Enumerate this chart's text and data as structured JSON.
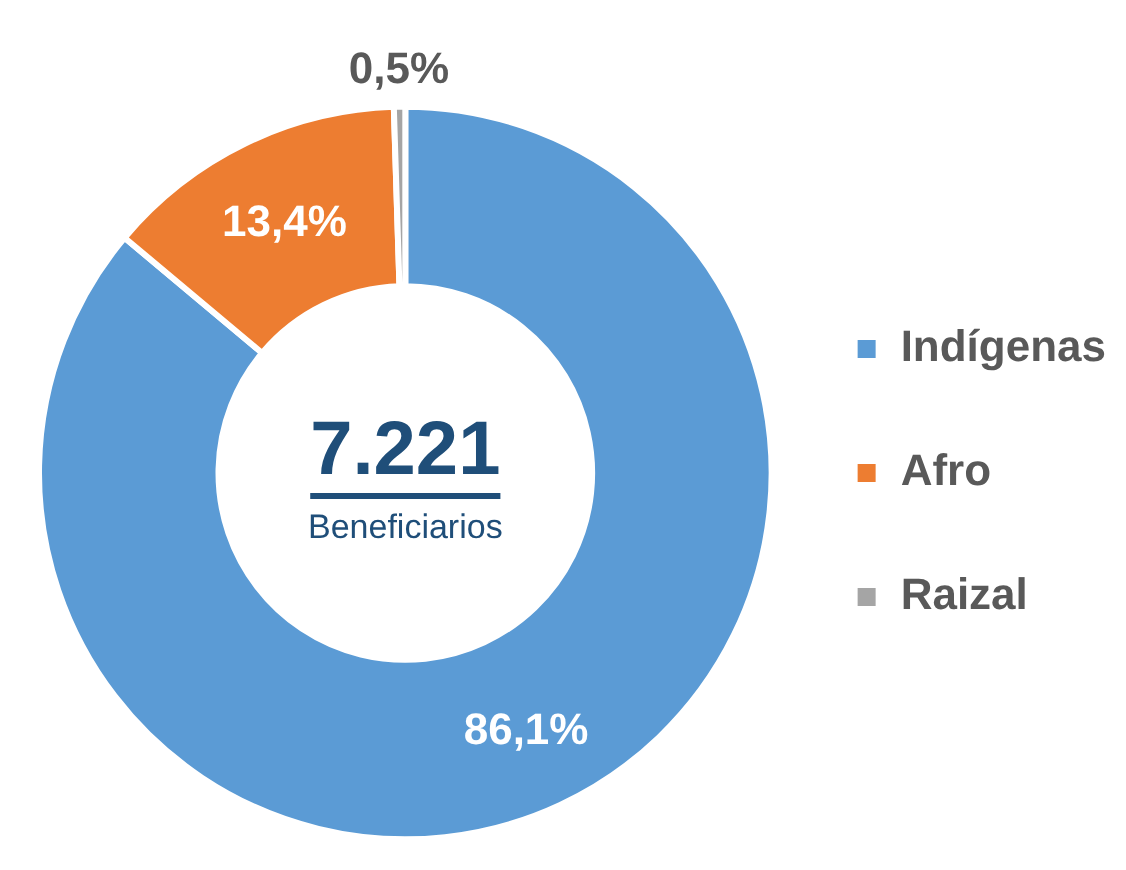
{
  "chart_data": {
    "type": "donut",
    "categories": [
      "Indígenas",
      "Afro",
      "Raizal"
    ],
    "values": [
      86.1,
      13.4,
      0.5
    ],
    "colors": [
      "#5b9bd5",
      "#ed7d31",
      "#a5a5a5"
    ],
    "value_labels": [
      "86,1%",
      "13,4%",
      "0,5%"
    ],
    "legend": "right",
    "annotations": [
      "7.221",
      "Beneficiarios"
    ]
  }
}
